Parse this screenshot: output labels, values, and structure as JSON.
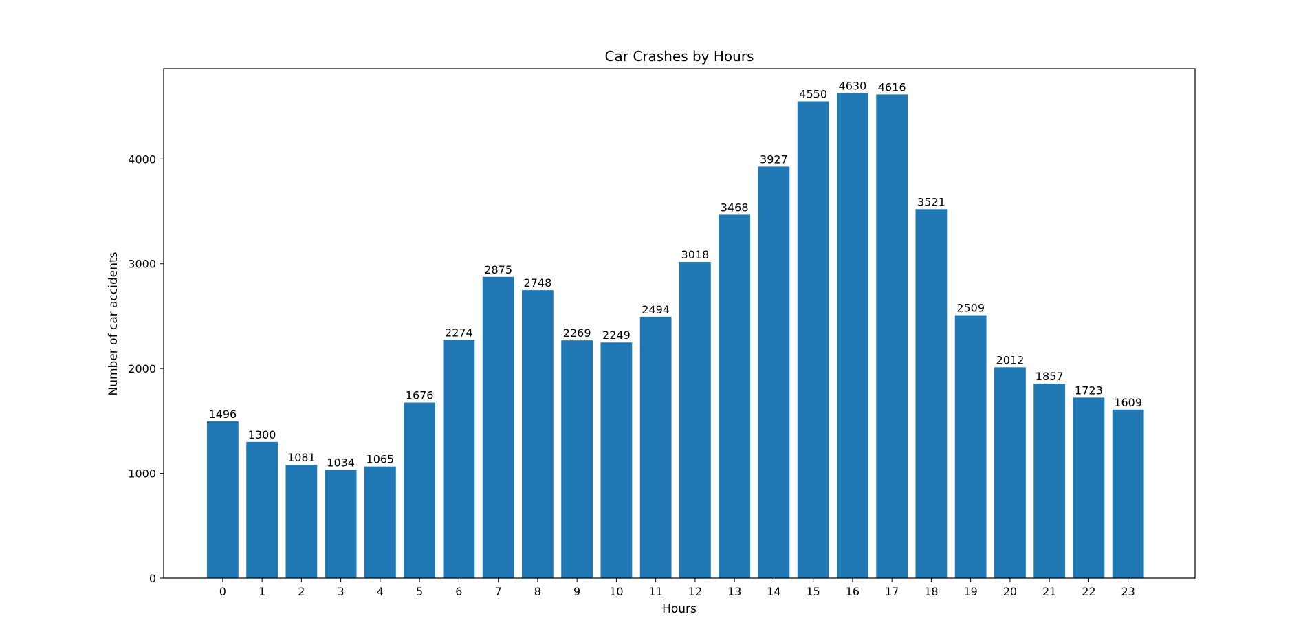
{
  "chart_data": {
    "type": "bar",
    "title": "Car Crashes by Hours",
    "xlabel": "Hours",
    "ylabel": "Number of car accidents",
    "categories": [
      "0",
      "1",
      "2",
      "3",
      "4",
      "5",
      "6",
      "7",
      "8",
      "9",
      "10",
      "11",
      "12",
      "13",
      "14",
      "15",
      "16",
      "17",
      "18",
      "19",
      "20",
      "21",
      "22",
      "23"
    ],
    "values": [
      1496,
      1300,
      1081,
      1034,
      1065,
      1676,
      2274,
      2875,
      2748,
      2269,
      2249,
      2494,
      3018,
      3468,
      3927,
      4550,
      4630,
      4616,
      3521,
      2509,
      2012,
      1857,
      1723,
      1609
    ],
    "yticks": [
      0,
      1000,
      2000,
      3000,
      4000
    ],
    "ylim": [
      0,
      4861.5
    ],
    "xlim": [
      -1.5,
      24.7
    ],
    "bar_color": "#1f77b4",
    "grid": false,
    "legend": "none"
  }
}
